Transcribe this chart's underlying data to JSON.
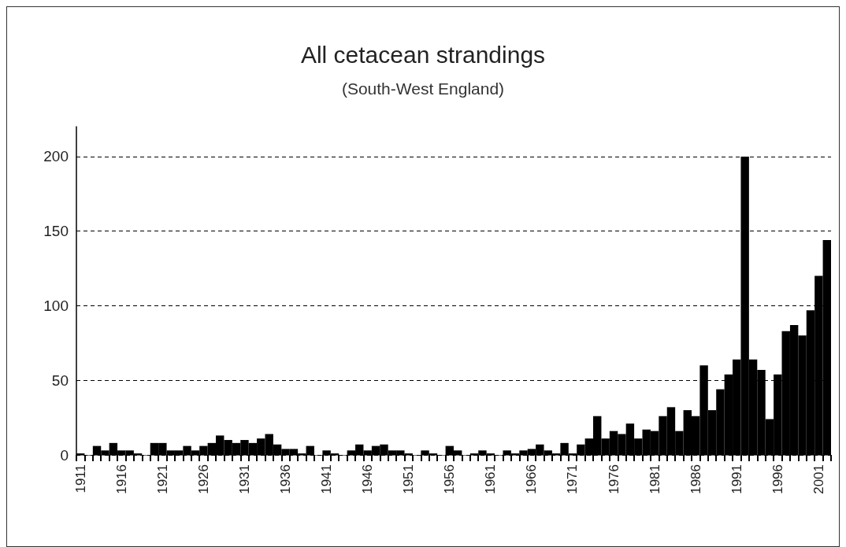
{
  "chart_data": {
    "type": "bar",
    "title": "All cetacean strandings",
    "subtitle": "(South-West England)",
    "categories": [
      "1911",
      null,
      null,
      null,
      null,
      "1916",
      null,
      null,
      null,
      null,
      "1921",
      null,
      null,
      null,
      null,
      "1926",
      null,
      null,
      null,
      null,
      "1931",
      null,
      null,
      null,
      null,
      "1936",
      null,
      null,
      null,
      null,
      "1941",
      null,
      null,
      null,
      null,
      "1946",
      null,
      null,
      null,
      null,
      "1951",
      null,
      null,
      null,
      null,
      "1956",
      null,
      null,
      null,
      null,
      "1961",
      null,
      null,
      null,
      null,
      "1966",
      null,
      null,
      null,
      null,
      "1971",
      null,
      null,
      null,
      null,
      "1976",
      null,
      null,
      null,
      null,
      "1981",
      null,
      null,
      null,
      null,
      "1986",
      null,
      null,
      null,
      null,
      "1991",
      null,
      null,
      null,
      null,
      "1996",
      null,
      null,
      null,
      null,
      "2001",
      null
    ],
    "values": [
      1,
      0,
      6,
      3,
      8,
      3,
      3,
      1,
      0,
      8,
      8,
      3,
      3,
      6,
      3,
      6,
      8,
      13,
      10,
      8,
      10,
      8,
      11,
      14,
      7,
      4,
      4,
      1,
      6,
      0,
      3,
      1,
      0,
      3,
      7,
      3,
      6,
      7,
      3,
      3,
      1,
      0,
      3,
      1,
      0,
      6,
      3,
      0,
      1,
      3,
      1,
      0,
      3,
      1,
      3,
      4,
      7,
      3,
      1,
      8,
      1,
      7,
      11,
      26,
      11,
      16,
      14,
      21,
      11,
      17,
      16,
      26,
      32,
      16,
      30,
      26,
      60,
      30,
      44,
      54,
      64,
      200,
      64,
      57,
      24,
      54,
      83,
      87,
      80,
      97,
      120,
      144
    ],
    "color": "#000000",
    "ylim": [
      0,
      220
    ],
    "yticks": [
      0,
      50,
      100,
      150,
      200
    ],
    "grid": "y"
  }
}
